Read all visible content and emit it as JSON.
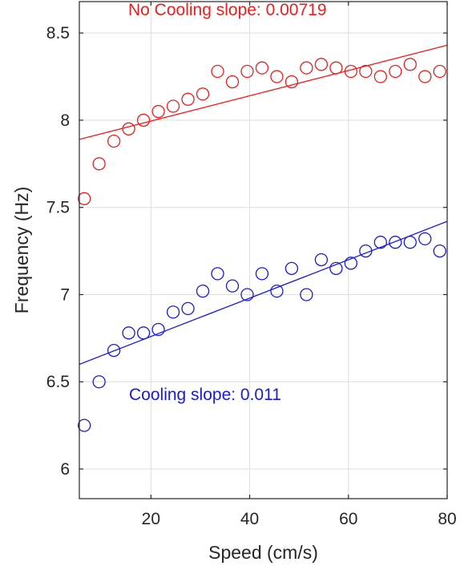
{
  "chart_data": {
    "type": "scatter",
    "xlabel": "Speed (cm/s)",
    "ylabel": "Frequency (Hz)",
    "xlim": [
      5.5,
      80
    ],
    "ylim": [
      5.83,
      8.68
    ],
    "xticks": [
      20,
      40,
      60,
      80
    ],
    "yticks": [
      6,
      6.5,
      7,
      7.5,
      8,
      8.5
    ],
    "xtick_labels": [
      "20",
      "40",
      "60",
      "80"
    ],
    "ytick_labels": [
      "6",
      "6.5",
      "7",
      "7.5",
      "8",
      "8.5"
    ],
    "grid": true,
    "series": [
      {
        "name": "No Cooling",
        "color": "#e8201e",
        "marker": "open-circle",
        "points": [
          {
            "x": 6.5,
            "y": 7.55
          },
          {
            "x": 9.5,
            "y": 7.75
          },
          {
            "x": 12.5,
            "y": 7.88
          },
          {
            "x": 15.5,
            "y": 7.95
          },
          {
            "x": 18.5,
            "y": 8.0
          },
          {
            "x": 21.5,
            "y": 8.05
          },
          {
            "x": 24.5,
            "y": 8.08
          },
          {
            "x": 27.5,
            "y": 8.12
          },
          {
            "x": 30.5,
            "y": 8.15
          },
          {
            "x": 33.5,
            "y": 8.28
          },
          {
            "x": 36.5,
            "y": 8.22
          },
          {
            "x": 39.5,
            "y": 8.28
          },
          {
            "x": 42.5,
            "y": 8.3
          },
          {
            "x": 45.5,
            "y": 8.25
          },
          {
            "x": 48.5,
            "y": 8.22
          },
          {
            "x": 51.5,
            "y": 8.3
          },
          {
            "x": 54.5,
            "y": 8.32
          },
          {
            "x": 57.5,
            "y": 8.3
          },
          {
            "x": 60.5,
            "y": 8.28
          },
          {
            "x": 63.5,
            "y": 8.28
          },
          {
            "x": 66.5,
            "y": 8.25
          },
          {
            "x": 69.5,
            "y": 8.28
          },
          {
            "x": 72.5,
            "y": 8.32
          },
          {
            "x": 75.5,
            "y": 8.25
          },
          {
            "x": 78.5,
            "y": 8.28
          }
        ],
        "fit": {
          "slope": 0.00719,
          "x": [
            5.5,
            80
          ],
          "y": [
            7.89,
            8.43
          ]
        },
        "annotation": "No Cooling slope: 0.00719"
      },
      {
        "name": "Cooling",
        "color": "#1a1ad6",
        "marker": "open-circle",
        "points": [
          {
            "x": 6.5,
            "y": 6.25
          },
          {
            "x": 9.5,
            "y": 6.5
          },
          {
            "x": 12.5,
            "y": 6.68
          },
          {
            "x": 15.5,
            "y": 6.78
          },
          {
            "x": 18.5,
            "y": 6.78
          },
          {
            "x": 21.5,
            "y": 6.8
          },
          {
            "x": 24.5,
            "y": 6.9
          },
          {
            "x": 27.5,
            "y": 6.92
          },
          {
            "x": 30.5,
            "y": 7.02
          },
          {
            "x": 33.5,
            "y": 7.12
          },
          {
            "x": 36.5,
            "y": 7.05
          },
          {
            "x": 39.5,
            "y": 7.0
          },
          {
            "x": 42.5,
            "y": 7.12
          },
          {
            "x": 45.5,
            "y": 7.02
          },
          {
            "x": 48.5,
            "y": 7.15
          },
          {
            "x": 51.5,
            "y": 7.0
          },
          {
            "x": 54.5,
            "y": 7.2
          },
          {
            "x": 57.5,
            "y": 7.15
          },
          {
            "x": 60.5,
            "y": 7.18
          },
          {
            "x": 63.5,
            "y": 7.25
          },
          {
            "x": 66.5,
            "y": 7.3
          },
          {
            "x": 69.5,
            "y": 7.3
          },
          {
            "x": 72.5,
            "y": 7.3
          },
          {
            "x": 75.5,
            "y": 7.32
          },
          {
            "x": 78.5,
            "y": 7.25
          }
        ],
        "fit": {
          "slope": 0.011,
          "x": [
            5.5,
            80
          ],
          "y": [
            6.6,
            7.42
          ]
        },
        "annotation": "Cooling slope: 0.011"
      }
    ]
  }
}
